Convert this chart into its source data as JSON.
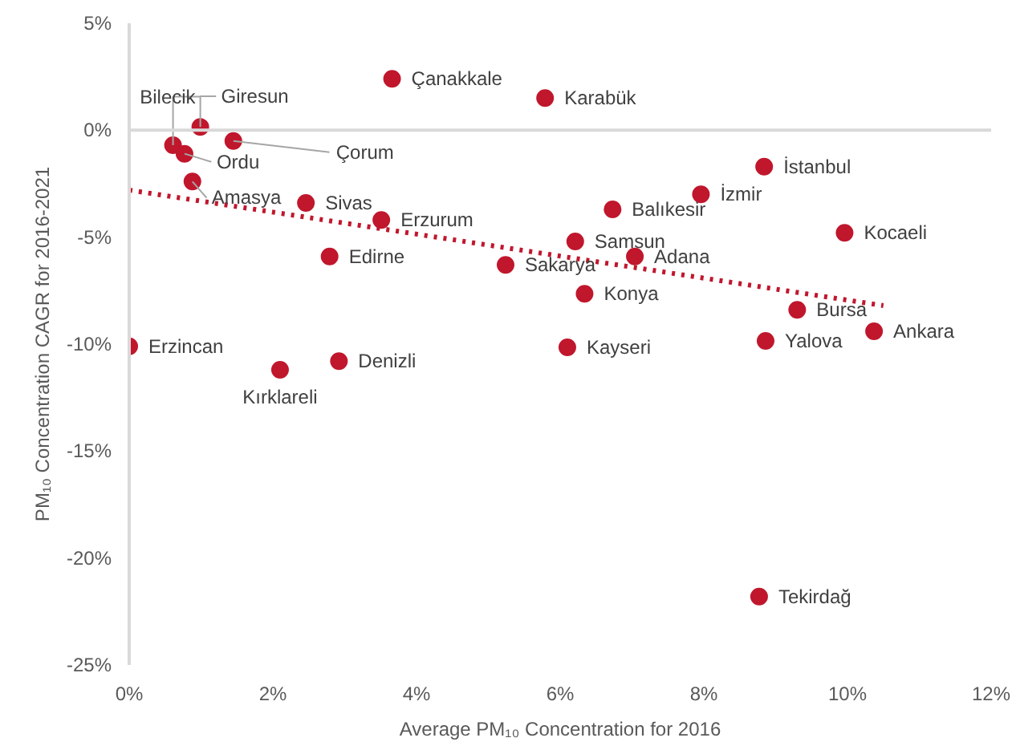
{
  "chart_data": {
    "type": "scatter",
    "xlabel": "Average PM₁₀ Concentration for 2016",
    "ylabel": "PM₁₀ Concentration CAGR for 2016-2021",
    "xlim": [
      0,
      12
    ],
    "ylim": [
      -25,
      5
    ],
    "xticks": [
      {
        "value": 0,
        "label": "0%"
      },
      {
        "value": 2,
        "label": "2%"
      },
      {
        "value": 4,
        "label": "4%"
      },
      {
        "value": 6,
        "label": "6%"
      },
      {
        "value": 8,
        "label": "8%"
      },
      {
        "value": 10,
        "label": "10%"
      },
      {
        "value": 12,
        "label": "12%"
      }
    ],
    "yticks": [
      {
        "value": 5,
        "label": "5%"
      },
      {
        "value": 0,
        "label": "0%"
      },
      {
        "value": -5,
        "label": "-5%"
      },
      {
        "value": -10,
        "label": "-10%"
      },
      {
        "value": -15,
        "label": "-15%"
      },
      {
        "value": -20,
        "label": "-20%"
      },
      {
        "value": -25,
        "label": "-25%"
      }
    ],
    "grid": false,
    "marker": "circle",
    "ref_lines": [
      {
        "axis": "y",
        "value": 0,
        "label": null,
        "color": "#d9d9d9"
      }
    ],
    "series": [
      {
        "color": "#c0172d",
        "x": [
          3.66,
          5.79,
          0.99,
          0.61,
          0.77,
          1.45,
          0.88,
          2.46,
          3.51,
          2.79,
          5.24,
          6.21,
          7.04,
          6.34,
          6.73,
          7.96,
          8.84,
          9.96,
          9.3,
          10.37,
          8.86,
          6.1,
          0,
          2.1,
          2.92,
          8.77
        ],
        "values": [
          2.4,
          1.5,
          0.15,
          -0.7,
          -1.1,
          -0.5,
          -2.4,
          -3.4,
          -4.2,
          -5.9,
          -6.3,
          -5.2,
          -5.9,
          -7.65,
          -3.7,
          -3.0,
          -1.7,
          -4.8,
          -8.4,
          -9.4,
          -9.85,
          -10.15,
          -10.1,
          -11.2,
          -10.8,
          -21.8
        ]
      },
      {
        "type": "line",
        "color": "#c0172d",
        "line_style": "dotted",
        "marker": "none",
        "x": [
          0,
          10.5
        ],
        "values": [
          -2.8,
          -8.2
        ]
      }
    ],
    "annotations": [
      {
        "text": "Çanakkale",
        "x": 3.66,
        "y": 2.4
      },
      {
        "text": "Karabük",
        "x": 5.79,
        "y": 1.5
      },
      {
        "text": "Giresun",
        "x": 0.99,
        "y": 0.15
      },
      {
        "text": "Bilecik",
        "x": 0.61,
        "y": -0.7
      },
      {
        "text": "Ordu",
        "x": 0.77,
        "y": -1.1
      },
      {
        "text": "Çorum",
        "x": 1.45,
        "y": -0.5
      },
      {
        "text": "Amasya",
        "x": 0.88,
        "y": -2.4
      },
      {
        "text": "Sivas",
        "x": 2.46,
        "y": -3.4
      },
      {
        "text": "Erzurum",
        "x": 3.51,
        "y": -4.2
      },
      {
        "text": "Edirne",
        "x": 2.79,
        "y": -5.9
      },
      {
        "text": "Sakarya",
        "x": 5.24,
        "y": -6.3
      },
      {
        "text": "Samsun",
        "x": 6.21,
        "y": -5.2
      },
      {
        "text": "Adana",
        "x": 7.04,
        "y": -5.9
      },
      {
        "text": "Konya",
        "x": 6.34,
        "y": -7.65
      },
      {
        "text": "Balıkesir",
        "x": 6.73,
        "y": -3.7
      },
      {
        "text": "İzmir",
        "x": 7.96,
        "y": -3.0
      },
      {
        "text": "İstanbul",
        "x": 8.84,
        "y": -1.7
      },
      {
        "text": "Kocaeli",
        "x": 9.96,
        "y": -4.8
      },
      {
        "text": "Bursa",
        "x": 9.3,
        "y": -8.4
      },
      {
        "text": "Ankara",
        "x": 10.37,
        "y": -9.4
      },
      {
        "text": "Yalova",
        "x": 8.86,
        "y": -9.85
      },
      {
        "text": "Kayseri",
        "x": 6.1,
        "y": -10.15
      },
      {
        "text": "Erzincan",
        "x": 0,
        "y": -10.1
      },
      {
        "text": "Kırklareli",
        "x": 2.1,
        "y": -11.2
      },
      {
        "text": "Denizli",
        "x": 2.92,
        "y": -10.8
      },
      {
        "text": "Tekirdağ",
        "x": 8.77,
        "y": -21.8
      }
    ]
  }
}
